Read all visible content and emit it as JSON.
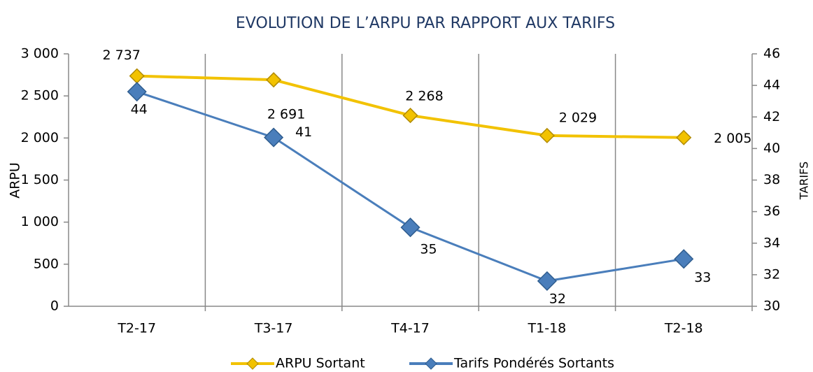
{
  "chart_data": {
    "type": "line",
    "title": "EVOLUTION DE L’ARPU PAR RAPPORT AUX TARIFS",
    "y_label": "ARPU",
    "y2_label": "TARIFS",
    "categories": [
      "T2-17",
      "T3-17",
      "T4-17",
      "T1-18",
      "T2-18"
    ],
    "series": [
      {
        "name": "ARPU Sortant",
        "color": "#f2c200",
        "values": [
          2737,
          2691,
          2268,
          2029,
          2005
        ],
        "value_labels": [
          "2 737",
          "2 691",
          "2 268",
          "2 029",
          "2 005"
        ]
      },
      {
        "name": "Tarifs Pondérés Sortants",
        "color": "#4a7ebb",
        "axis": "y2",
        "values": [
          43.6,
          40.7,
          35.0,
          31.6,
          33.0
        ],
        "value_labels": [
          "44",
          "41",
          "35",
          "32",
          "33"
        ]
      }
    ],
    "ylim": [
      0,
      3000
    ],
    "yticks": [
      0,
      500,
      {
        "value": 1000,
        "label": "1 000"
      },
      {
        "value": 1500,
        "label": "1 500"
      },
      {
        "value": 2000,
        "label": "2 000"
      },
      {
        "value": 2500,
        "label": "2 500"
      },
      {
        "value": 3000,
        "label": "3 000"
      }
    ],
    "y2lim": [
      30,
      46
    ],
    "y2ticks": [
      30,
      32,
      34,
      36,
      38,
      40,
      42,
      44,
      46
    ],
    "grid": true,
    "legend": "bottom"
  }
}
